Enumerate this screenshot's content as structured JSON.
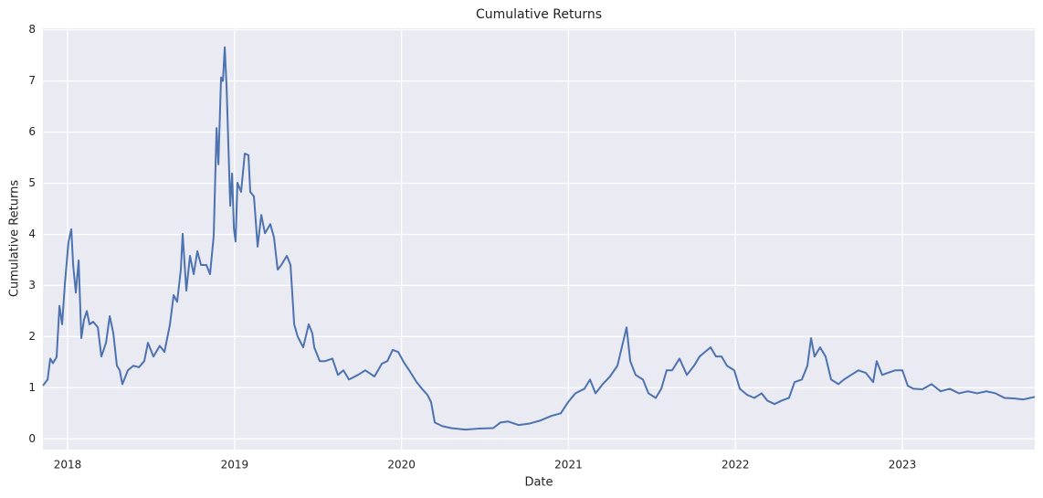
{
  "chart_data": {
    "type": "line",
    "title": "Cumulative Returns",
    "x_label": "Date",
    "y_label": "Cumulative Returns",
    "x": [
      2017.852,
      2017.88,
      2017.896,
      2017.912,
      2017.934,
      2017.951,
      2017.967,
      2017.984,
      2018.005,
      2018.022,
      2018.033,
      2018.049,
      2018.066,
      2018.082,
      2018.098,
      2018.115,
      2018.131,
      2018.153,
      2018.181,
      2018.202,
      2018.23,
      2018.252,
      2018.274,
      2018.295,
      2018.312,
      2018.328,
      2018.361,
      2018.394,
      2018.427,
      2018.459,
      2018.481,
      2018.514,
      2018.552,
      2018.58,
      2018.613,
      2018.635,
      2018.656,
      2018.678,
      2018.689,
      2018.711,
      2018.733,
      2018.755,
      2018.777,
      2018.799,
      2018.831,
      2018.853,
      2018.875,
      2018.892,
      2018.903,
      2018.919,
      2018.93,
      2018.941,
      2018.952,
      2018.963,
      2018.974,
      2018.985,
      2018.996,
      2019.006,
      2019.017,
      2019.039,
      2019.061,
      2019.083,
      2019.094,
      2019.116,
      2019.138,
      2019.16,
      2019.182,
      2019.214,
      2019.236,
      2019.258,
      2019.28,
      2019.313,
      2019.335,
      2019.357,
      2019.378,
      2019.411,
      2019.444,
      2019.466,
      2019.477,
      2019.51,
      2019.543,
      2019.586,
      2019.619,
      2019.652,
      2019.685,
      2019.739,
      2019.783,
      2019.838,
      2019.882,
      2019.915,
      2019.947,
      2019.98,
      2020.013,
      2020.046,
      2020.09,
      2020.122,
      2020.155,
      2020.177,
      2020.199,
      2020.243,
      2020.297,
      2020.385,
      2020.462,
      2020.549,
      2020.593,
      2020.637,
      2020.702,
      2020.768,
      2020.833,
      2020.899,
      2020.954,
      2020.998,
      2021.041,
      2021.096,
      2021.129,
      2021.162,
      2021.205,
      2021.249,
      2021.293,
      2021.326,
      2021.348,
      2021.37,
      2021.402,
      2021.446,
      2021.479,
      2021.523,
      2021.556,
      2021.588,
      2021.621,
      2021.665,
      2021.709,
      2021.752,
      2021.785,
      2021.818,
      2021.851,
      2021.884,
      2021.917,
      2021.949,
      2021.993,
      2022.026,
      2022.07,
      2022.113,
      2022.157,
      2022.19,
      2022.234,
      2022.278,
      2022.321,
      2022.354,
      2022.398,
      2022.431,
      2022.453,
      2022.474,
      2022.507,
      2022.54,
      2022.573,
      2022.617,
      2022.65,
      2022.693,
      2022.737,
      2022.781,
      2022.825,
      2022.846,
      2022.879,
      2022.912,
      2022.956,
      2023.0,
      2023.032,
      2023.065,
      2023.12,
      2023.175,
      2023.229,
      2023.284,
      2023.339,
      2023.393,
      2023.448,
      2023.503,
      2023.558,
      2023.612,
      2023.667,
      2023.722,
      2023.793
    ],
    "series": [
      {
        "color": "#4c72b0",
        "values": [
          1.04,
          1.16,
          1.57,
          1.48,
          1.6,
          2.6,
          2.24,
          3.05,
          3.85,
          4.1,
          3.4,
          2.86,
          3.49,
          1.97,
          2.33,
          2.5,
          2.24,
          2.29,
          2.18,
          1.61,
          1.88,
          2.4,
          2.06,
          1.43,
          1.34,
          1.07,
          1.34,
          1.43,
          1.4,
          1.52,
          1.88,
          1.61,
          1.82,
          1.7,
          2.24,
          2.81,
          2.68,
          3.31,
          4.01,
          2.9,
          3.58,
          3.22,
          3.67,
          3.4,
          3.4,
          3.22,
          3.97,
          6.08,
          5.37,
          7.07,
          7.0,
          7.66,
          6.89,
          5.72,
          4.56,
          5.19,
          4.11,
          3.86,
          5.01,
          4.83,
          5.58,
          5.55,
          4.83,
          4.74,
          3.76,
          4.38,
          4.02,
          4.2,
          3.94,
          3.31,
          3.4,
          3.58,
          3.4,
          2.24,
          2.0,
          1.79,
          2.24,
          2.06,
          1.79,
          1.52,
          1.52,
          1.57,
          1.25,
          1.34,
          1.16,
          1.25,
          1.34,
          1.22,
          1.47,
          1.52,
          1.74,
          1.7,
          1.5,
          1.34,
          1.11,
          0.98,
          0.86,
          0.72,
          0.32,
          0.25,
          0.21,
          0.18,
          0.2,
          0.21,
          0.32,
          0.34,
          0.27,
          0.3,
          0.36,
          0.45,
          0.5,
          0.72,
          0.89,
          0.98,
          1.16,
          0.89,
          1.07,
          1.22,
          1.43,
          1.88,
          2.18,
          1.52,
          1.25,
          1.16,
          0.89,
          0.8,
          0.98,
          1.34,
          1.34,
          1.57,
          1.25,
          1.43,
          1.61,
          1.7,
          1.79,
          1.61,
          1.61,
          1.43,
          1.34,
          0.98,
          0.86,
          0.8,
          0.89,
          0.75,
          0.68,
          0.75,
          0.8,
          1.11,
          1.16,
          1.43,
          1.97,
          1.61,
          1.79,
          1.61,
          1.16,
          1.07,
          1.16,
          1.25,
          1.34,
          1.29,
          1.11,
          1.52,
          1.25,
          1.29,
          1.34,
          1.34,
          1.04,
          0.98,
          0.97,
          1.07,
          0.93,
          0.98,
          0.89,
          0.93,
          0.89,
          0.93,
          0.89,
          0.8,
          0.79,
          0.77,
          0.82
        ]
      }
    ],
    "xlim": [
      2017.852,
      2023.793
    ],
    "xticks": [
      2018,
      2019,
      2020,
      2021,
      2022,
      2023
    ],
    "ylim": [
      -0.21,
      8.03
    ],
    "yticks": [
      0,
      1,
      2,
      3,
      4,
      5,
      6,
      7,
      8
    ],
    "grid": true
  }
}
